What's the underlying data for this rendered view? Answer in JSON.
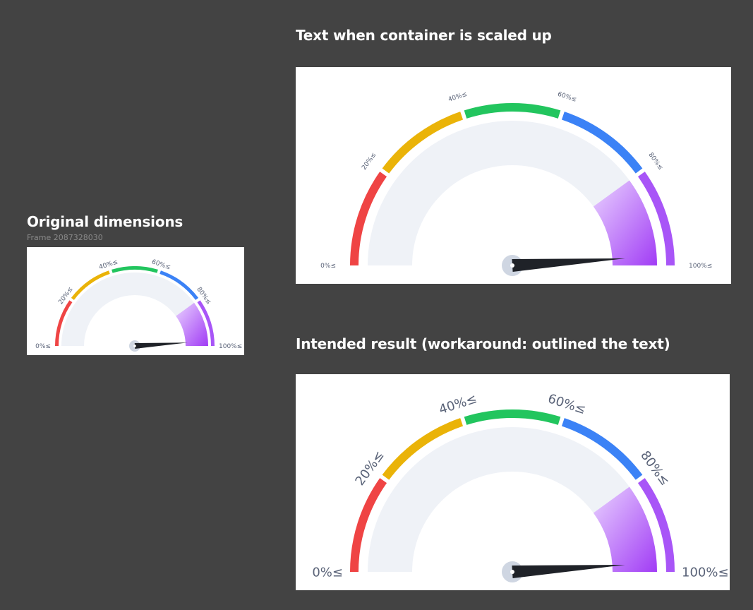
{
  "headings": {
    "original": "Original dimensions",
    "frame_name": "Frame 2087328030",
    "scaled": "Text when container is scaled up",
    "intended": "Intended result (workaround: outlined the text)"
  },
  "gauge": {
    "labels": [
      "0%≤",
      "20%≤",
      "40%≤",
      "60%≤",
      "80%≤",
      "100%≤"
    ],
    "needle_value": 98,
    "highlight_range": [
      80,
      100
    ],
    "colors": {
      "segment_0_20": "#ef4444",
      "segment_20_40": "#eab308",
      "segment_40_60": "#22c55e",
      "segment_60_80": "#3b82f6",
      "segment_80_100": "#a855f7",
      "track": "#eff2f7",
      "needle": "#1f2228",
      "hub": "#cfd6e2"
    }
  }
}
